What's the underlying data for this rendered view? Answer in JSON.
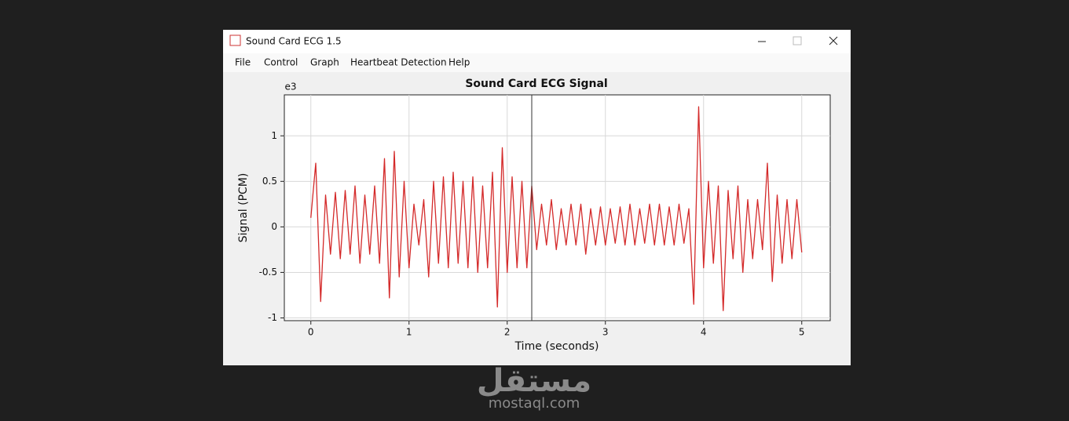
{
  "window": {
    "title": "Sound Card ECG 1.5",
    "menu": [
      "File",
      "Control",
      "Graph",
      "Heartbeat Detection",
      "Help"
    ]
  },
  "chart_data": {
    "type": "line",
    "title": "Sound Card ECG Signal",
    "x_label": "Time (seconds)",
    "y_label": "Signal (PCM)",
    "y_multiplier": "e3",
    "x": [
      0,
      0.05,
      0.1,
      0.15,
      0.2,
      0.25,
      0.3,
      0.35,
      0.4,
      0.45,
      0.5,
      0.55,
      0.6,
      0.65,
      0.7,
      0.75,
      0.8,
      0.85,
      0.9,
      0.95,
      1,
      1.05,
      1.1,
      1.15,
      1.2,
      1.25,
      1.3,
      1.35,
      1.4,
      1.45,
      1.5,
      1.55,
      1.6,
      1.65,
      1.7,
      1.75,
      1.8,
      1.85,
      1.9,
      1.95,
      2,
      2.05,
      2.1,
      2.15,
      2.2,
      2.25,
      2.3,
      2.35,
      2.4,
      2.45,
      2.5,
      2.55,
      2.6,
      2.65,
      2.7,
      2.75,
      2.8,
      2.85,
      2.9,
      2.95,
      3,
      3.05,
      3.1,
      3.15,
      3.2,
      3.25,
      3.3,
      3.35,
      3.4,
      3.45,
      3.5,
      3.55,
      3.6,
      3.65,
      3.7,
      3.75,
      3.8,
      3.85,
      3.9,
      3.95,
      4,
      4.05,
      4.1,
      4.15,
      4.2,
      4.25,
      4.3,
      4.35,
      4.4,
      4.45,
      4.5,
      4.55,
      4.6,
      4.65,
      4.7,
      4.75,
      4.8,
      4.85,
      4.9,
      4.95,
      5
    ],
    "series": [
      {
        "color": "#d42a2a",
        "values": [
          0.1,
          0.7,
          -0.82,
          0.35,
          -0.3,
          0.38,
          -0.35,
          0.4,
          -0.3,
          0.45,
          -0.4,
          0.35,
          -0.3,
          0.45,
          -0.4,
          0.75,
          -0.78,
          0.83,
          -0.55,
          0.5,
          -0.45,
          0.25,
          -0.2,
          0.3,
          -0.55,
          0.5,
          -0.4,
          0.55,
          -0.45,
          0.6,
          -0.4,
          0.5,
          -0.45,
          0.55,
          -0.5,
          0.45,
          -0.45,
          0.6,
          -0.88,
          0.87,
          -0.5,
          0.55,
          -0.45,
          0.5,
          -0.45,
          0.45,
          -0.25,
          0.25,
          -0.2,
          0.3,
          -0.25,
          0.2,
          -0.2,
          0.25,
          -0.2,
          0.25,
          -0.3,
          0.2,
          -0.2,
          0.22,
          -0.2,
          0.2,
          -0.18,
          0.22,
          -0.2,
          0.25,
          -0.2,
          0.2,
          -0.18,
          0.25,
          -0.2,
          0.25,
          -0.2,
          0.22,
          -0.2,
          0.25,
          -0.18,
          0.2,
          -0.85,
          1.32,
          -0.45,
          0.5,
          -0.4,
          0.45,
          -0.92,
          0.4,
          -0.35,
          0.45,
          -0.5,
          0.3,
          -0.35,
          0.3,
          -0.25,
          0.7,
          -0.6,
          0.35,
          -0.4,
          0.3,
          -0.35,
          0.3,
          -0.28
        ]
      }
    ],
    "xlim": [
      -0.27,
      5.29
    ],
    "ylim": [
      -1.03,
      1.45
    ],
    "xticks": [
      0,
      1,
      2,
      3,
      4,
      5
    ],
    "yticks": [
      -1,
      -0.5,
      0,
      0.5,
      1
    ],
    "grid": true,
    "cursor_x": 2.25
  },
  "watermark": {
    "logo": "مستقل",
    "url": "mostaql.com"
  }
}
